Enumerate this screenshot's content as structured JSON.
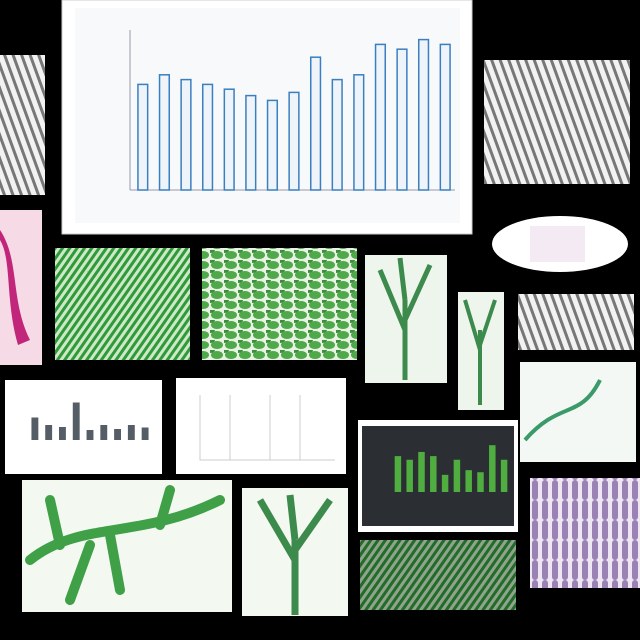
{
  "chart_data": [
    {
      "type": "bar",
      "color": "#3a7fc0",
      "ylim": [
        0,
        100
      ],
      "values": [
        66,
        72,
        69,
        66,
        63,
        59,
        56,
        61,
        83,
        69,
        72,
        91,
        88,
        94,
        91
      ]
    },
    {
      "type": "bar",
      "color": "#4fae3f",
      "ylim": [
        0,
        100
      ],
      "values": [
        69,
        62,
        77,
        69,
        33,
        62,
        42,
        38,
        90,
        62
      ]
    },
    {
      "type": "bar",
      "color": "#555e66",
      "ylim": [
        0,
        100
      ],
      "values": [
        45,
        30,
        26,
        75,
        20,
        30,
        22,
        30,
        25
      ]
    }
  ]
}
